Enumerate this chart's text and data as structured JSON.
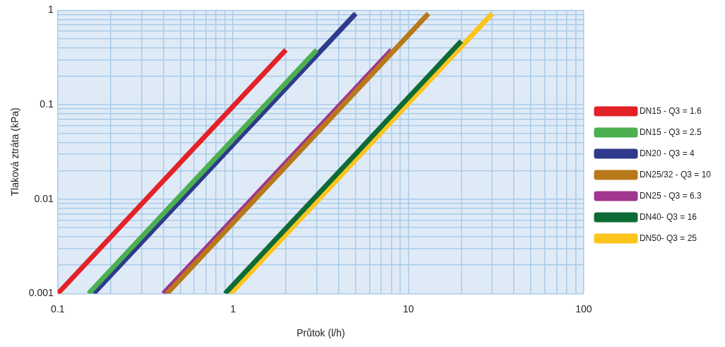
{
  "chart_data": {
    "type": "line",
    "xlabel": "Průtok (l/h)",
    "ylabel": "Tlaková ztráta (kPa)",
    "log": "xy",
    "grid": true,
    "legend": "right",
    "marker": "none",
    "line_style": "solid",
    "xlim": [
      0.1,
      100
    ],
    "ylim": [
      0.001,
      1
    ],
    "xticks": [
      0.1,
      {
        "value": 0.2,
        "label": null
      },
      {
        "value": 0.3,
        "label": null
      },
      {
        "value": 0.4,
        "label": null
      },
      {
        "value": 0.5,
        "label": null
      },
      {
        "value": 0.6,
        "label": null
      },
      {
        "value": 0.7,
        "label": null
      },
      {
        "value": 0.8,
        "label": null
      },
      {
        "value": 0.9,
        "label": null
      },
      1,
      {
        "value": 2,
        "label": null
      },
      {
        "value": 3,
        "label": null
      },
      {
        "value": 4,
        "label": null
      },
      {
        "value": 5,
        "label": null
      },
      {
        "value": 6,
        "label": null
      },
      {
        "value": 7,
        "label": null
      },
      {
        "value": 8,
        "label": null
      },
      {
        "value": 9,
        "label": null
      },
      10,
      {
        "value": 20,
        "label": null
      },
      {
        "value": 30,
        "label": null
      },
      {
        "value": 40,
        "label": null
      },
      {
        "value": 50,
        "label": null
      },
      {
        "value": 60,
        "label": null
      },
      {
        "value": 70,
        "label": null
      },
      {
        "value": 80,
        "label": null
      },
      {
        "value": 90,
        "label": null
      },
      100
    ],
    "yticks": [
      0.001,
      {
        "value": 0.002,
        "label": null
      },
      {
        "value": 0.003,
        "label": null
      },
      {
        "value": 0.004,
        "label": null
      },
      {
        "value": 0.005,
        "label": null
      },
      {
        "value": 0.006,
        "label": null
      },
      {
        "value": 0.007,
        "label": null
      },
      {
        "value": 0.008,
        "label": null
      },
      {
        "value": 0.009,
        "label": null
      },
      0.01,
      {
        "value": 0.02,
        "label": null
      },
      {
        "value": 0.03,
        "label": null
      },
      {
        "value": 0.04,
        "label": null
      },
      {
        "value": 0.05,
        "label": null
      },
      {
        "value": 0.06,
        "label": null
      },
      {
        "value": 0.07,
        "label": null
      },
      {
        "value": 0.08,
        "label": null
      },
      {
        "value": 0.09,
        "label": null
      },
      0.1,
      {
        "value": 0.2,
        "label": null
      },
      {
        "value": 0.3,
        "label": null
      },
      {
        "value": 0.4,
        "label": null
      },
      {
        "value": 0.5,
        "label": null
      },
      {
        "value": 0.6,
        "label": null
      },
      {
        "value": 0.7,
        "label": null
      },
      {
        "value": 0.8,
        "label": null
      },
      {
        "value": 0.9,
        "label": null
      },
      1
    ],
    "series": [
      {
        "name": "DN15 - Q3 = 1.6",
        "color": "#e32228",
        "x": [
          0.1,
          2
        ],
        "values": [
          0.001,
          0.38
        ]
      },
      {
        "name": "DN15 - Q3 = 2.5",
        "color": "#4caf50",
        "x": [
          0.15,
          3
        ],
        "values": [
          0.001,
          0.38
        ]
      },
      {
        "name": "DN20 - Q3 = 4",
        "color": "#2e3a8c",
        "x": [
          0.16,
          5
        ],
        "values": [
          0.001,
          0.92
        ]
      },
      {
        "name": "DN25/32 - Q3 = 10",
        "color": "#b8791a",
        "x": [
          0.42,
          13
        ],
        "values": [
          0.001,
          0.92
        ]
      },
      {
        "name": "DN25 - Q3 = 6.3",
        "color": "#a0368e",
        "x": [
          0.4,
          8
        ],
        "values": [
          0.001,
          0.38
        ]
      },
      {
        "name": "DN40- Q3 = 16",
        "color": "#0e6b35",
        "x": [
          0.9,
          20
        ],
        "values": [
          0.001,
          0.47
        ]
      },
      {
        "name": "DN50- Q3 = 25",
        "color": "#fbc51d",
        "x": [
          0.97,
          30
        ],
        "values": [
          0.001,
          0.92
        ]
      }
    ]
  }
}
